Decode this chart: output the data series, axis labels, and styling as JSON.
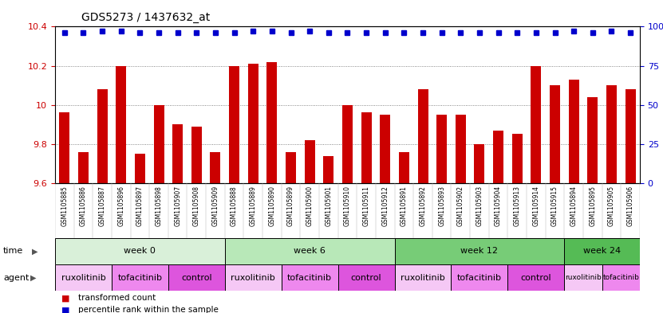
{
  "title": "GDS5273 / 1437632_at",
  "samples": [
    "GSM1105885",
    "GSM1105886",
    "GSM1105887",
    "GSM1105896",
    "GSM1105897",
    "GSM1105898",
    "GSM1105907",
    "GSM1105908",
    "GSM1105909",
    "GSM1105888",
    "GSM1105889",
    "GSM1105890",
    "GSM1105899",
    "GSM1105900",
    "GSM1105901",
    "GSM1105910",
    "GSM1105911",
    "GSM1105912",
    "GSM1105891",
    "GSM1105892",
    "GSM1105893",
    "GSM1105902",
    "GSM1105903",
    "GSM1105904",
    "GSM1105913",
    "GSM1105914",
    "GSM1105915",
    "GSM1105894",
    "GSM1105895",
    "GSM1105905",
    "GSM1105906"
  ],
  "bar_values": [
    9.96,
    9.76,
    10.08,
    10.2,
    9.75,
    10.0,
    9.9,
    9.89,
    9.76,
    10.2,
    10.21,
    10.22,
    9.76,
    9.82,
    9.74,
    10.0,
    9.96,
    9.95,
    9.76,
    10.08,
    9.95,
    9.95,
    9.8,
    9.87,
    9.85,
    10.2,
    10.1,
    10.13,
    10.04,
    10.1,
    10.08
  ],
  "percentile_values": [
    96,
    96,
    97,
    97,
    96,
    96,
    96,
    96,
    96,
    96,
    97,
    97,
    96,
    97,
    96,
    96,
    96,
    96,
    96,
    96,
    96,
    96,
    96,
    96,
    96,
    96,
    96,
    97,
    96,
    97,
    96
  ],
  "ylim_left": [
    9.6,
    10.4
  ],
  "ylim_right": [
    0,
    100
  ],
  "yticks_left": [
    9.6,
    9.8,
    10.0,
    10.2,
    10.4
  ],
  "yticks_right": [
    0,
    25,
    50,
    75,
    100
  ],
  "bar_color": "#cc0000",
  "dot_color": "#0000cc",
  "time_groups": [
    {
      "label": "week 0",
      "start": 0,
      "end": 9,
      "color": "#d9f0d9"
    },
    {
      "label": "week 6",
      "start": 9,
      "end": 18,
      "color": "#b8e8b8"
    },
    {
      "label": "week 12",
      "start": 18,
      "end": 27,
      "color": "#77cc77"
    },
    {
      "label": "week 24",
      "start": 27,
      "end": 31,
      "color": "#55bb55"
    }
  ],
  "agent_groups": [
    {
      "label": "ruxolitinib",
      "start": 0,
      "end": 3,
      "color": "#f5c8f5"
    },
    {
      "label": "tofacitinib",
      "start": 3,
      "end": 6,
      "color": "#ee88ee"
    },
    {
      "label": "control",
      "start": 6,
      "end": 9,
      "color": "#dd55dd"
    },
    {
      "label": "ruxolitinib",
      "start": 9,
      "end": 12,
      "color": "#f5c8f5"
    },
    {
      "label": "tofacitinib",
      "start": 12,
      "end": 15,
      "color": "#ee88ee"
    },
    {
      "label": "control",
      "start": 15,
      "end": 18,
      "color": "#dd55dd"
    },
    {
      "label": "ruxolitinib",
      "start": 18,
      "end": 21,
      "color": "#f5c8f5"
    },
    {
      "label": "tofacitinib",
      "start": 21,
      "end": 24,
      "color": "#ee88ee"
    },
    {
      "label": "control",
      "start": 24,
      "end": 27,
      "color": "#dd55dd"
    },
    {
      "label": "ruxolitinib",
      "start": 27,
      "end": 29,
      "color": "#f5c8f5"
    },
    {
      "label": "tofacitinib",
      "start": 29,
      "end": 31,
      "color": "#ee88ee"
    }
  ],
  "legend_bar_label": "transformed count",
  "legend_dot_label": "percentile rank within the sample",
  "gridline_color": "#666666",
  "bg_color": "#ffffff",
  "tick_label_color_left": "#cc0000",
  "tick_label_color_right": "#0000cc",
  "xlabel_bg_color": "#cccccc",
  "time_label": "time",
  "agent_label": "agent",
  "n_samples": 31
}
